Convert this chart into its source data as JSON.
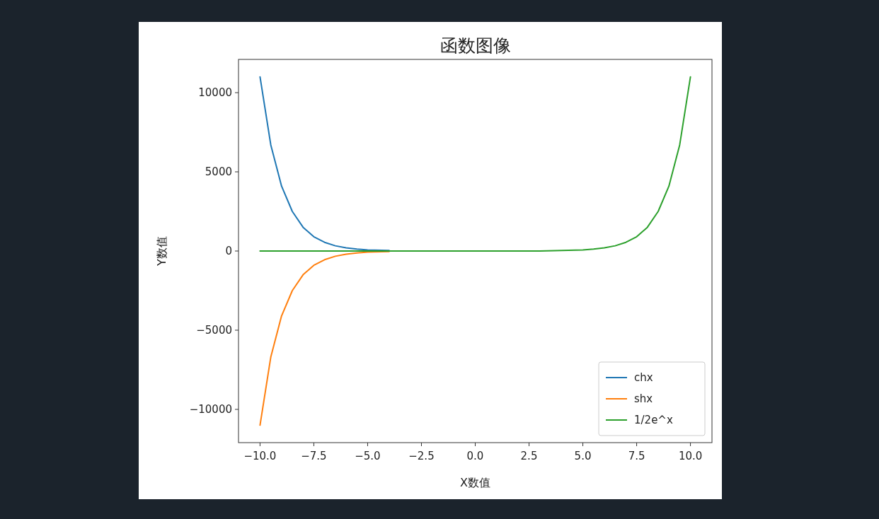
{
  "chart_data": {
    "type": "line",
    "title": "函数图像",
    "xlabel": "X数值",
    "ylabel": "Y数值",
    "x": [
      -10,
      -9.5,
      -9,
      -8.5,
      -8,
      -7.5,
      -7,
      -6.5,
      -6,
      -5.5,
      -5,
      -4,
      -3,
      -2,
      0,
      2,
      3,
      4,
      5,
      5.5,
      6,
      6.5,
      7,
      7.5,
      8,
      8.5,
      9,
      9.5,
      10
    ],
    "series": [
      {
        "name": "chx",
        "color": "#1f77b4",
        "values": [
          11000,
          6700,
          4100,
          2500,
          1500,
          900,
          550,
          330,
          200,
          120,
          70,
          30,
          null,
          null,
          null,
          null,
          null,
          null,
          null,
          null,
          null,
          null,
          null,
          null,
          null,
          null,
          null,
          null,
          null
        ]
      },
      {
        "name": "shx",
        "color": "#ff7f0e",
        "values": [
          -11000,
          -6700,
          -4100,
          -2500,
          -1500,
          -900,
          -550,
          -330,
          -200,
          -120,
          -70,
          -30,
          null,
          null,
          null,
          null,
          null,
          null,
          null,
          null,
          null,
          null,
          null,
          null,
          null,
          null,
          null,
          null,
          null
        ]
      },
      {
        "name": "1/2e^x",
        "color": "#2ca02c",
        "values": [
          0,
          0,
          0,
          0,
          0,
          0,
          0,
          0,
          0,
          0,
          0,
          0,
          0,
          0,
          0,
          0,
          0,
          30,
          70,
          120,
          200,
          330,
          550,
          900,
          1500,
          2500,
          4100,
          6700,
          11000
        ]
      }
    ],
    "xlim": [
      -11,
      11
    ],
    "ylim": [
      -12100,
      12100
    ],
    "xticks": [
      {
        "value": -10,
        "label": "−10.0"
      },
      {
        "value": -7.5,
        "label": "−7.5"
      },
      {
        "value": -5,
        "label": "−5.0"
      },
      {
        "value": -2.5,
        "label": "−2.5"
      },
      {
        "value": 0,
        "label": "0.0"
      },
      {
        "value": 2.5,
        "label": "2.5"
      },
      {
        "value": 5,
        "label": "5.0"
      },
      {
        "value": 7.5,
        "label": "7.5"
      },
      {
        "value": 10,
        "label": "10.0"
      }
    ],
    "yticks": [
      {
        "value": -10000,
        "label": "−10000"
      },
      {
        "value": -5000,
        "label": "−5000"
      },
      0,
      5000,
      10000
    ],
    "grid": false,
    "legend": "bottom right",
    "line_style": "solid"
  }
}
